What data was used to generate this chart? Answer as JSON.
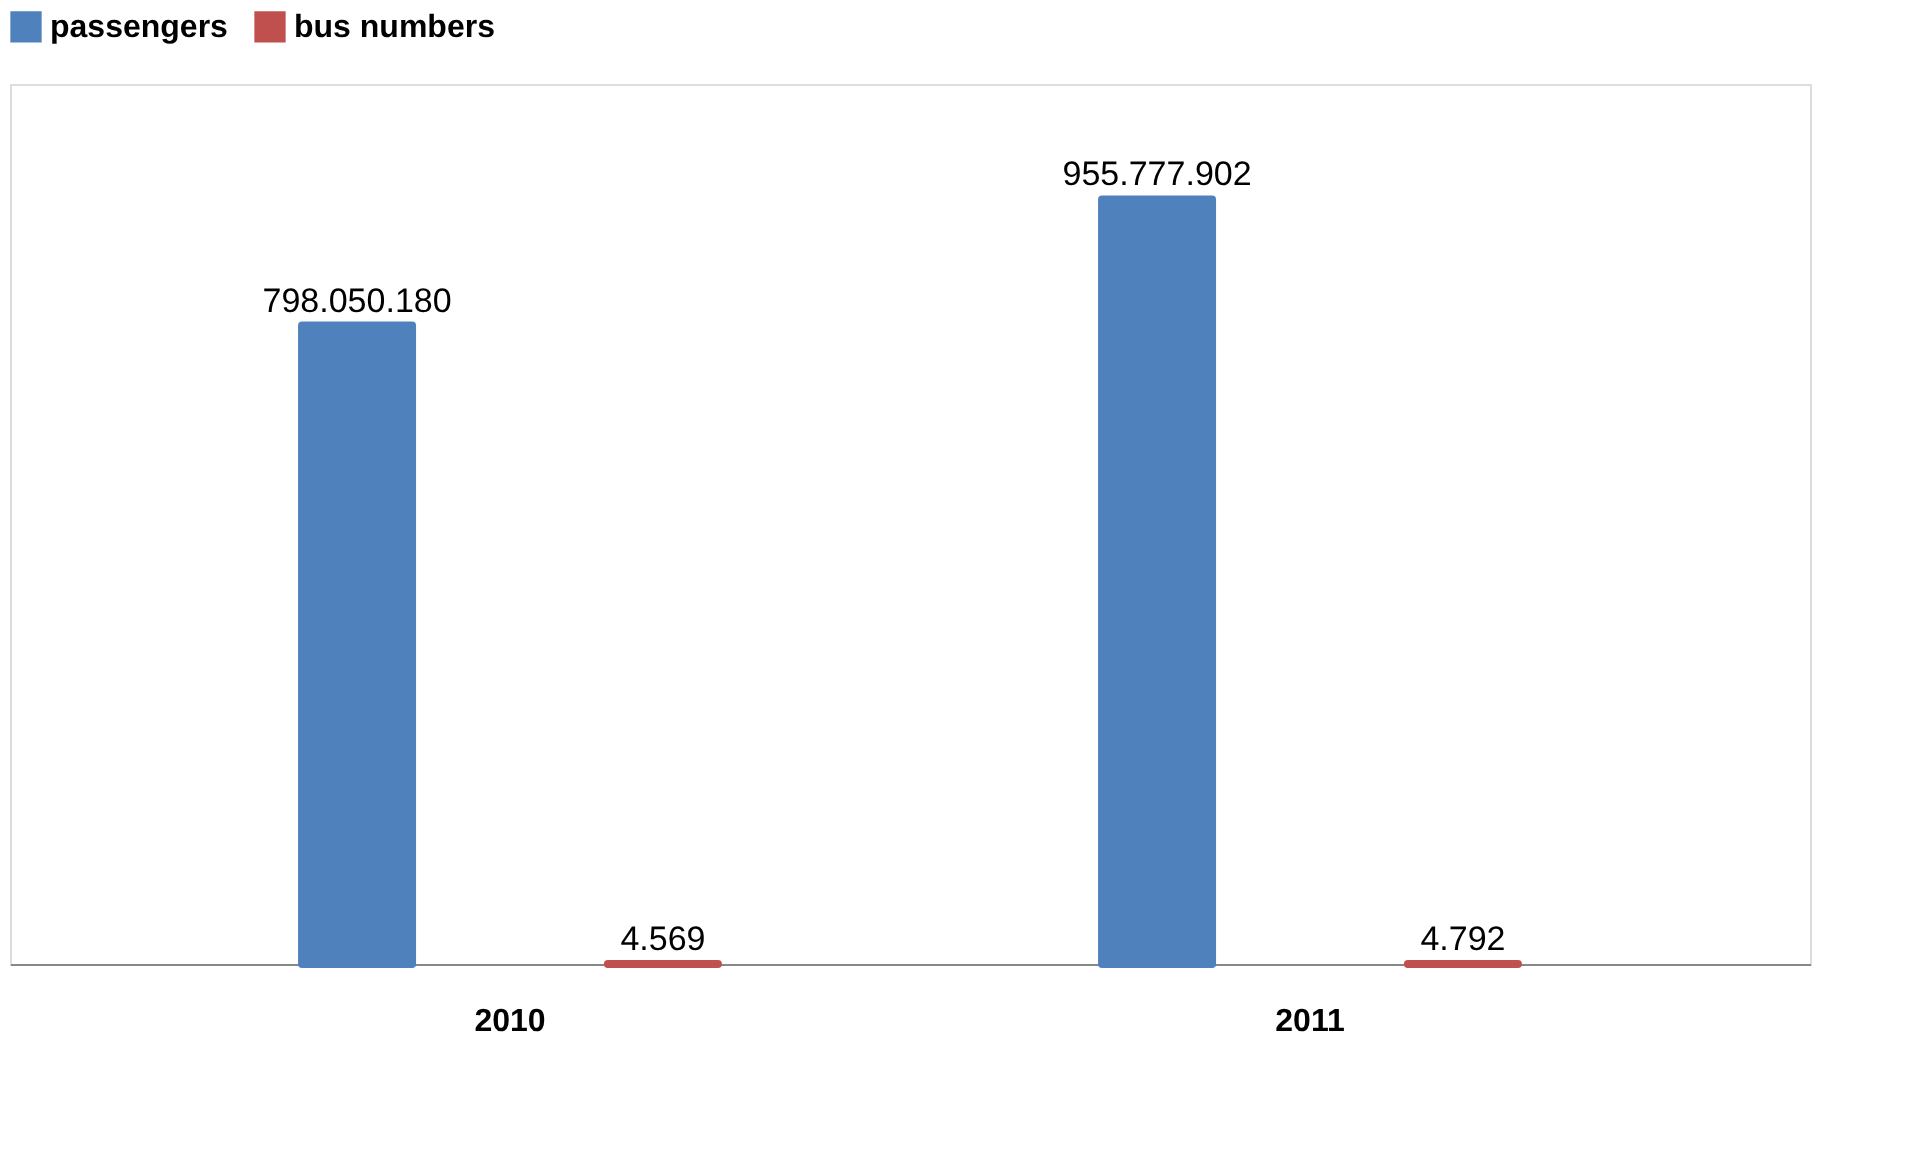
{
  "chart_data": {
    "type": "bar",
    "categories": [
      "2010",
      "2011"
    ],
    "series": [
      {
        "name": "passengers",
        "color": "#4f81bd",
        "values": [
          798050180,
          955777902
        ],
        "value_labels": [
          "798.050.180",
          "955.777.902"
        ]
      },
      {
        "name": "bus numbers",
        "color": "#c0504d",
        "values": [
          4569,
          4792
        ],
        "value_labels": [
          "4.569",
          "4.792"
        ]
      }
    ],
    "legend": "top",
    "grid": false
  }
}
